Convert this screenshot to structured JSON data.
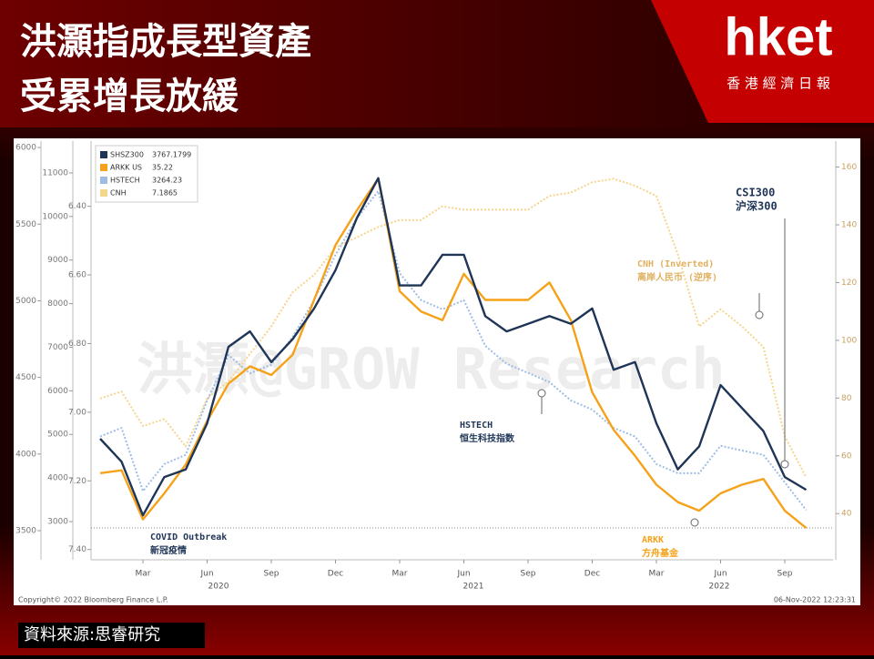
{
  "header": {
    "title_lines": [
      "洪灝指成長型資產",
      "受累增長放緩"
    ],
    "logo": "hket",
    "logo_sub": "香 港 經 濟 日 報"
  },
  "chart_data": {
    "type": "line",
    "categories": [
      null,
      null,
      "Mar",
      null,
      null,
      "Jun",
      null,
      null,
      "Sep",
      null,
      null,
      "Dec",
      null,
      null,
      "Mar",
      null,
      null,
      "Jun",
      null,
      null,
      "Sep",
      null,
      null,
      "Dec",
      null,
      null,
      "Mar",
      null,
      null,
      "Jun",
      null,
      null,
      "Sep",
      null
    ],
    "year_labels": [
      "2020",
      "2021",
      "2022"
    ],
    "axes": [
      {
        "ylim": [
          3310,
          6042
        ],
        "yticks": [
          3500,
          4000,
          4500,
          5000,
          5500,
          6000
        ],
        "color": "#777777"
      },
      {
        "ylim": [
          2123,
          11730
        ],
        "yticks": [
          3000,
          4000,
          5000,
          6000,
          7000,
          8000,
          9000,
          10000,
          11000
        ],
        "color": "#777777"
      },
      {
        "ylim": [
          7.43,
          6.21
        ],
        "yticks": [
          {
            "value": 6.4,
            "label": "6.40"
          },
          {
            "value": 6.6,
            "label": "6.60"
          },
          {
            "value": 6.8,
            "label": "6.80"
          },
          {
            "value": 7.0,
            "label": "7.00"
          },
          {
            "value": 7.2,
            "label": "7.20"
          },
          {
            "value": 7.4,
            "label": "7.40"
          }
        ],
        "color": "#777777"
      },
      {
        "ylim": [
          24,
          169
        ],
        "yticks": [
          40,
          60,
          80,
          100,
          120,
          140,
          160
        ],
        "color": "#c9a060"
      }
    ],
    "legend": "top-left",
    "series": [
      {
        "name": "SHSZ300",
        "last": 3767.1799,
        "color": "#1f3557",
        "style": "solid",
        "axis": 0,
        "values": [
          4100,
          3950,
          3600,
          3850,
          3900,
          4200,
          4700,
          4800,
          4600,
          4750,
          4950,
          5200,
          5540,
          5800,
          5100,
          5100,
          5300,
          5300,
          4900,
          4800,
          4850,
          4900,
          4850,
          4950,
          4550,
          4600,
          4200,
          3900,
          4050,
          4450,
          4300,
          4150,
          3850,
          3767
        ]
      },
      {
        "name": "ARKK US",
        "last": 35.22,
        "color": "#f5a21a",
        "style": "solid",
        "axis": 3,
        "values": [
          54,
          55,
          38,
          47,
          57,
          72,
          85,
          91,
          88,
          95,
          114,
          133,
          145,
          156,
          117,
          110,
          107,
          123,
          114,
          114,
          114,
          120,
          107,
          82,
          69,
          60,
          50,
          44,
          41,
          47,
          50,
          52,
          41,
          35
        ]
      },
      {
        "name": "HSTECH",
        "last": 3264.23,
        "color": "#9fbde3",
        "style": "dotted",
        "axis": 1,
        "values": [
          4950,
          5150,
          3700,
          4320,
          4530,
          5780,
          6820,
          6400,
          6600,
          7240,
          8080,
          9120,
          9960,
          10580,
          8700,
          8080,
          7870,
          8080,
          7030,
          6620,
          6410,
          6200,
          5780,
          5570,
          5150,
          4950,
          4320,
          4110,
          4110,
          4740,
          4630,
          4530,
          3900,
          3264
        ]
      },
      {
        "name": "CNH",
        "last": 7.1865,
        "color": "#f6d58c",
        "style": "dotted",
        "axis": 2,
        "values": [
          6.96,
          6.94,
          7.04,
          7.02,
          7.1,
          6.96,
          6.91,
          6.83,
          6.75,
          6.65,
          6.6,
          6.52,
          6.49,
          6.46,
          6.44,
          6.44,
          6.4,
          6.41,
          6.41,
          6.41,
          6.41,
          6.37,
          6.36,
          6.33,
          6.32,
          6.34,
          6.37,
          6.54,
          6.75,
          6.7,
          6.75,
          6.81,
          7.07,
          7.19
        ]
      }
    ],
    "annotations": [
      {
        "lines": [
          "CSI300",
          "沪深300"
        ]
      },
      {
        "lines": [
          "CNH (Inverted)",
          "离岸人民币 (逆序)"
        ]
      },
      {
        "lines": [
          "HSTECH",
          "恒生科技指数"
        ]
      },
      {
        "lines": [
          "ARKK",
          "方舟基金"
        ]
      },
      {
        "lines": [
          "COVID Outbreak",
          "新冠疫情"
        ]
      }
    ],
    "watermark": "洪灝@GROW Research",
    "copyright": "Copyright© 2022 Bloomberg Finance L.P.",
    "timestamp": "06-Nov-2022 12:23:31"
  },
  "footer": {
    "source": "資料來源:思睿研究"
  }
}
